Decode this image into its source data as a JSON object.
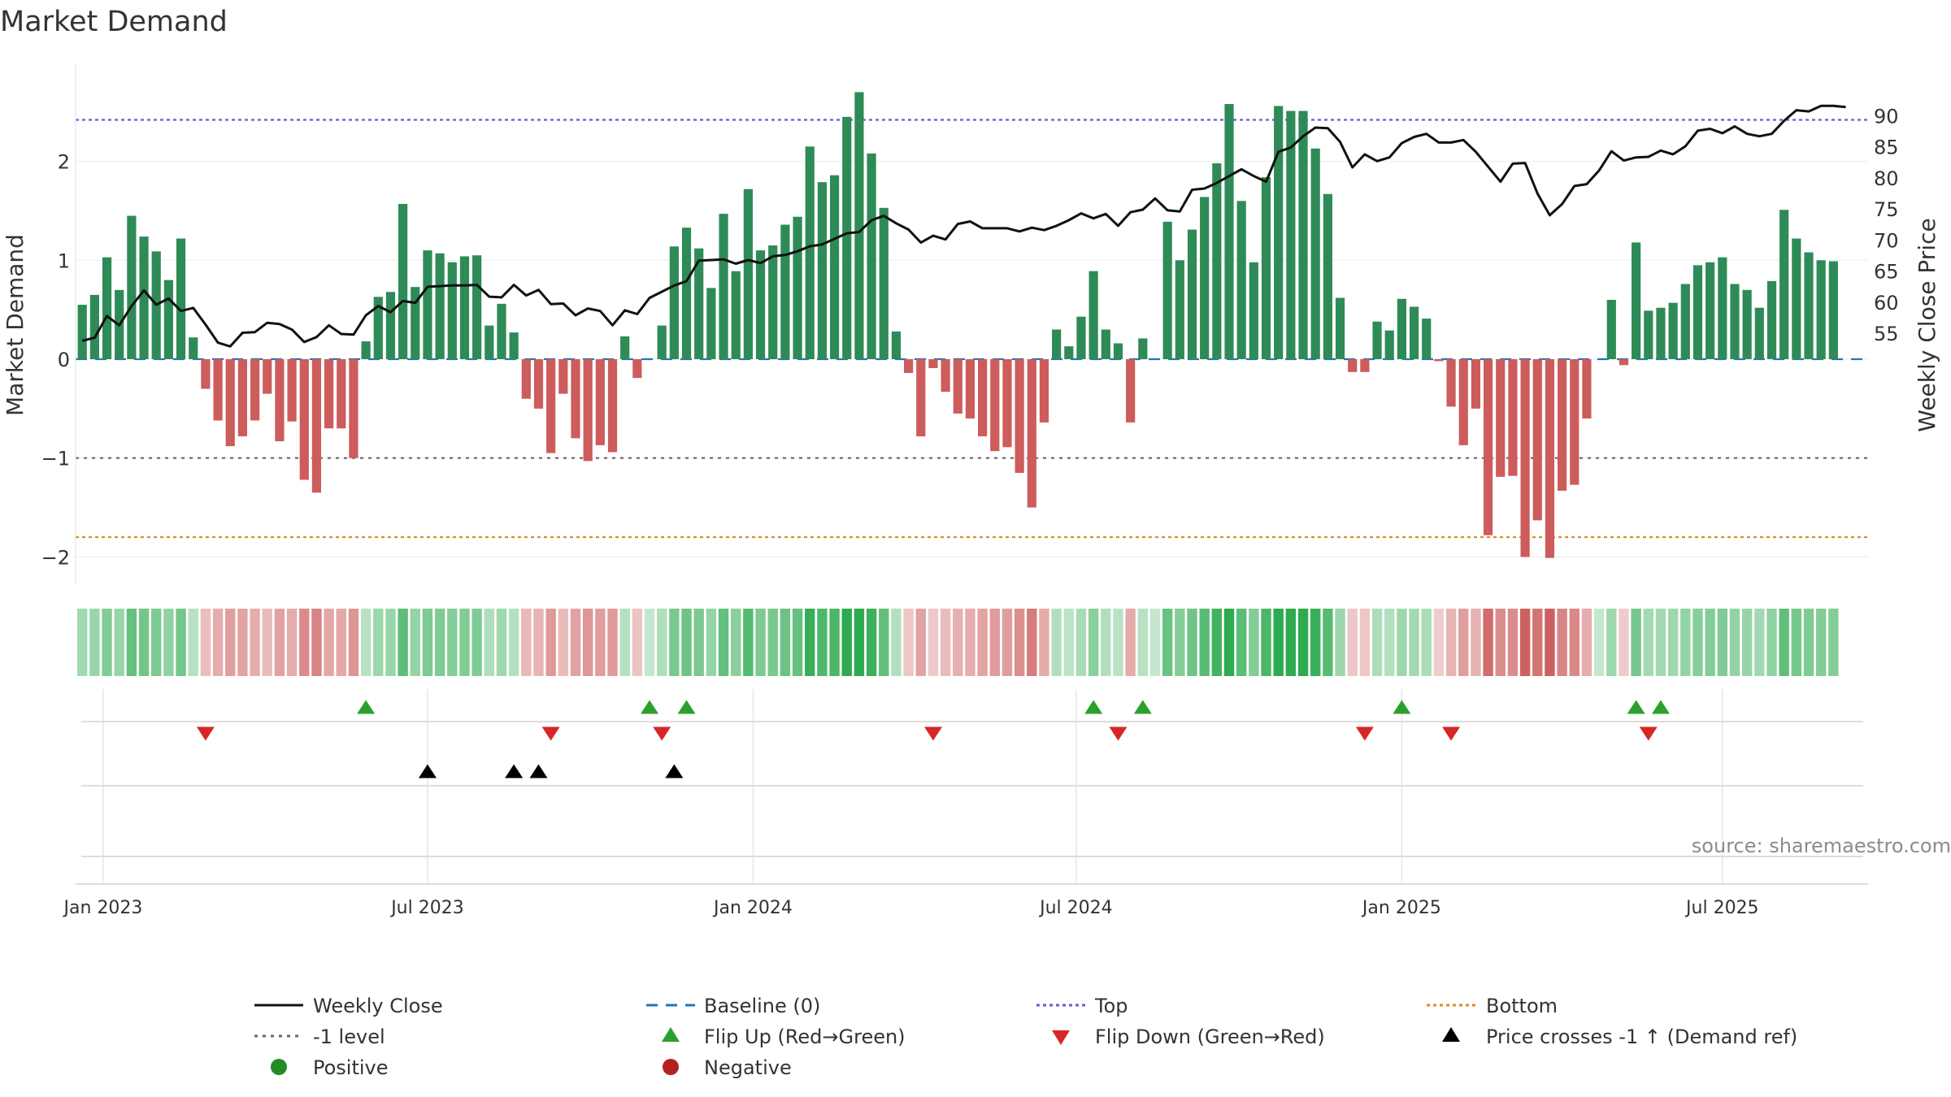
{
  "chart_data": {
    "type": "bar+line",
    "title": "Market Demand",
    "ylabel": "Market Demand",
    "y2label": "Weekly Close Price",
    "ylim": [
      -2.3,
      2.9
    ],
    "y2lim": [
      51.5,
      93.5
    ],
    "y_ticks": [
      -2,
      -1,
      0,
      1,
      2
    ],
    "y2_ticks": [
      55,
      60,
      65,
      70,
      75,
      80,
      85,
      90
    ],
    "x_ticks": [
      {
        "label": "Jan 2023",
        "week": 1.7
      },
      {
        "label": "Jul 2023",
        "week": 28.0
      },
      {
        "label": "Jan 2024",
        "week": 54.4
      },
      {
        "label": "Jul 2024",
        "week": 80.6
      },
      {
        "label": "Jan 2025",
        "week": 107.0
      },
      {
        "label": "Jul 2025",
        "week": 133.0
      }
    ],
    "reference_levels": {
      "top": 2.42,
      "bottom": -1.8,
      "minus_one": -1.0,
      "baseline": 0
    },
    "colors": {
      "positive_bar": "#2e8b57",
      "negative_bar": "#cd5c5c",
      "price_line": "#111111",
      "baseline": "#1f77b4",
      "top": "#6a5acd",
      "bottom": "#e08a1e",
      "minus_one": "#666666",
      "flip_up": "#2ca02c",
      "flip_down": "#d62728",
      "cross": "#000000",
      "positive_dot": "#228b22",
      "negative_dot": "#b22222"
    },
    "series": [
      {
        "name": "Market Demand",
        "type": "bar",
        "values": [
          0.55,
          0.65,
          1.03,
          0.7,
          1.45,
          1.24,
          1.09,
          0.8,
          1.22,
          0.22,
          -0.3,
          -0.62,
          -0.88,
          -0.78,
          -0.62,
          -0.35,
          -0.83,
          -0.63,
          -1.22,
          -1.35,
          -0.7,
          -0.7,
          -1.0,
          0.18,
          0.63,
          0.68,
          1.57,
          0.73,
          1.1,
          1.07,
          0.98,
          1.04,
          1.05,
          0.34,
          0.56,
          0.27,
          -0.4,
          -0.5,
          -0.95,
          -0.35,
          -0.8,
          -1.03,
          -0.87,
          -0.94,
          0.23,
          -0.19,
          0.0,
          0.34,
          1.14,
          1.33,
          1.12,
          0.72,
          1.47,
          0.89,
          1.72,
          1.1,
          1.15,
          1.36,
          1.44,
          2.15,
          1.79,
          1.86,
          2.45,
          2.7,
          2.08,
          1.53,
          0.28,
          -0.14,
          -0.78,
          -0.09,
          -0.33,
          -0.55,
          -0.6,
          -0.78,
          -0.93,
          -0.89,
          -1.15,
          -1.5,
          -0.64,
          0.3,
          0.13,
          0.43,
          0.89,
          0.3,
          0.16,
          -0.64,
          0.21,
          0.0,
          1.39,
          1.0,
          1.31,
          1.64,
          1.98,
          2.58,
          1.6,
          0.98,
          1.84,
          2.56,
          2.51,
          2.51,
          2.13,
          1.67,
          0.62,
          -0.13,
          -0.13,
          0.38,
          0.29,
          0.61,
          0.53,
          0.41,
          -0.02,
          -0.48,
          -0.87,
          -0.5,
          -1.78,
          -1.19,
          -1.18,
          -2.0,
          -1.63,
          -2.01,
          -1.33,
          -1.27,
          -0.6,
          0.0,
          0.6,
          -0.06,
          1.18,
          0.49,
          0.52,
          0.57,
          0.76,
          0.95,
          0.98,
          1.03,
          0.76,
          0.7,
          0.52,
          0.79,
          1.51,
          1.22,
          1.08,
          1.0,
          0.99
        ]
      },
      {
        "name": "Weekly Close",
        "type": "line",
        "values": [
          53.8,
          54.3,
          57.8,
          56.3,
          59.4,
          61.9,
          59.6,
          60.6,
          58.6,
          59.1,
          56.4,
          53.5,
          52.9,
          55.1,
          55.2,
          56.7,
          56.5,
          55.6,
          53.6,
          54.4,
          56.3,
          54.9,
          54.8,
          57.9,
          59.4,
          58.4,
          60.2,
          59.9,
          62.5,
          62.6,
          62.7,
          62.7,
          62.8,
          60.9,
          60.8,
          62.8,
          61.1,
          62.0,
          59.7,
          59.8,
          57.9,
          59.0,
          58.6,
          56.3,
          58.7,
          58.1,
          60.7,
          61.7,
          62.7,
          63.4,
          66.7,
          66.8,
          66.9,
          66.2,
          66.8,
          66.3,
          67.4,
          67.6,
          68.2,
          69.0,
          69.3,
          70.2,
          71.1,
          71.3,
          73.2,
          73.9,
          72.7,
          71.7,
          69.6,
          70.7,
          70.1,
          72.6,
          73.0,
          71.9,
          71.9,
          71.9,
          71.4,
          72.0,
          71.6,
          72.3,
          73.2,
          74.3,
          73.5,
          74.2,
          72.3,
          74.5,
          74.9,
          76.7,
          74.8,
          74.6,
          78.1,
          78.3,
          79.2,
          80.3,
          81.4,
          80.3,
          79.4,
          84.2,
          84.9,
          86.7,
          88.1,
          88.0,
          85.8,
          81.7,
          83.8,
          82.7,
          83.3,
          85.6,
          86.6,
          87.1,
          85.7,
          85.7,
          86.1,
          84.2,
          81.8,
          79.4,
          82.3,
          82.4,
          77.5,
          74.0,
          75.8,
          78.7,
          79.0,
          81.2,
          84.3,
          82.8,
          83.3,
          83.4,
          84.4,
          83.8,
          85.1,
          87.6,
          87.9,
          87.2,
          88.3,
          87.1,
          86.7,
          87.1,
          89.2,
          90.9,
          90.7,
          91.6,
          91.6,
          91.4
        ]
      }
    ],
    "strip": {
      "rows": [
        {
          "name": "flip_up",
          "weeks": [
            23,
            46,
            49,
            82,
            86,
            107,
            126,
            128
          ]
        },
        {
          "name": "flip_down",
          "weeks": [
            10,
            38,
            47,
            69,
            84,
            104,
            111,
            127
          ]
        },
        {
          "name": "price_cross",
          "weeks": [
            28,
            35,
            37,
            48
          ]
        }
      ]
    },
    "legend": [
      "Weekly Close",
      "Baseline (0)",
      "Top",
      "Bottom",
      "-1 level",
      "Flip Up (Red→Green)",
      "Flip Down (Green→Red)",
      "Price crosses -1 ↑ (Demand ref)",
      "Positive",
      "Negative"
    ]
  },
  "source_note": "source: sharemaestro.com"
}
